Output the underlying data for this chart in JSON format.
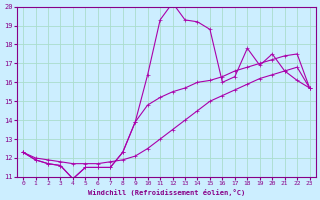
{
  "xlabel": "Windchill (Refroidissement éolien,°C)",
  "background_color": "#cceeff",
  "grid_color": "#aaddcc",
  "line_color": "#aa00aa",
  "xlim": [
    -0.5,
    23.5
  ],
  "ylim": [
    11,
    20
  ],
  "x_ticks": [
    0,
    1,
    2,
    3,
    4,
    5,
    6,
    7,
    8,
    9,
    10,
    11,
    12,
    13,
    14,
    15,
    16,
    17,
    18,
    19,
    20,
    21,
    22,
    23
  ],
  "y_ticks": [
    11,
    12,
    13,
    14,
    15,
    16,
    17,
    18,
    19,
    20
  ],
  "curve1_x": [
    0,
    1,
    2,
    3,
    4,
    5,
    6,
    7,
    8,
    9,
    10,
    11,
    12,
    13,
    14,
    15,
    16,
    17,
    18,
    19,
    20,
    21,
    22,
    23
  ],
  "curve1_y": [
    12.3,
    11.9,
    11.7,
    11.6,
    10.9,
    11.5,
    11.5,
    11.5,
    12.3,
    13.9,
    16.4,
    19.3,
    20.2,
    19.3,
    19.2,
    18.8,
    16.0,
    16.3,
    17.8,
    16.9,
    17.5,
    16.6,
    16.1,
    15.7
  ],
  "curve2_x": [
    0,
    1,
    2,
    3,
    4,
    5,
    6,
    7,
    8,
    9,
    10,
    11,
    12,
    13,
    14,
    15,
    16,
    17,
    18,
    19,
    20,
    21,
    22,
    23
  ],
  "curve2_y": [
    12.3,
    11.9,
    11.7,
    11.6,
    10.9,
    11.5,
    11.5,
    11.5,
    12.3,
    13.9,
    14.8,
    15.2,
    15.5,
    15.7,
    16.0,
    16.1,
    16.3,
    16.6,
    16.8,
    17.0,
    17.2,
    17.4,
    17.5,
    15.7
  ],
  "curve3_x": [
    0,
    1,
    2,
    3,
    4,
    5,
    6,
    7,
    8,
    9,
    10,
    11,
    12,
    13,
    14,
    15,
    16,
    17,
    18,
    19,
    20,
    21,
    22,
    23
  ],
  "curve3_y": [
    12.3,
    12.0,
    11.9,
    11.8,
    11.7,
    11.7,
    11.7,
    11.8,
    11.9,
    12.1,
    12.5,
    13.0,
    13.5,
    14.0,
    14.5,
    15.0,
    15.3,
    15.6,
    15.9,
    16.2,
    16.4,
    16.6,
    16.8,
    15.7
  ]
}
